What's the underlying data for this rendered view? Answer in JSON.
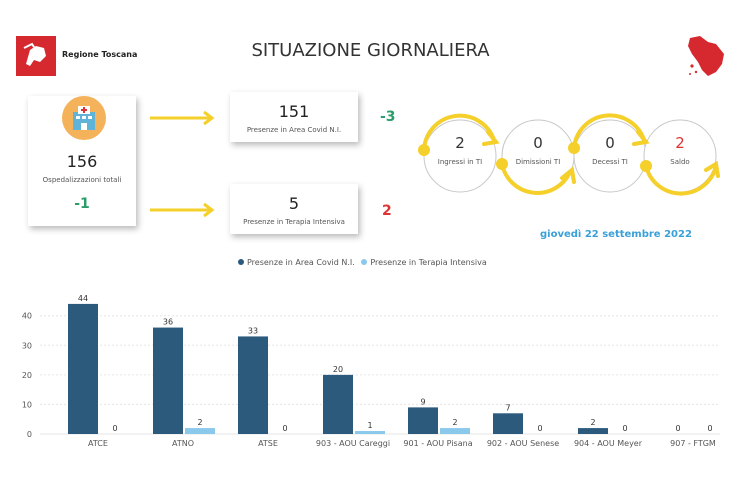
{
  "header": {
    "logo_text": "Regione Toscana",
    "title": "SITUAZIONE GIORNALIERA"
  },
  "hospital": {
    "total": "156",
    "total_label": "Ospedalizzazioni totali",
    "total_delta": "-1",
    "covid_area": "151",
    "covid_area_label": "Presenze in Area Covid N.I.",
    "covid_area_delta": "-3",
    "icu": "5",
    "icu_label": "Presenze in Terapia Intensiva",
    "icu_delta": "2"
  },
  "flow": {
    "items": [
      {
        "value": "2",
        "label": "Ingressi in TI"
      },
      {
        "value": "0",
        "label": "Dimissioni TI"
      },
      {
        "value": "0",
        "label": "Decessi TI"
      },
      {
        "value": "2",
        "label": "Saldo"
      }
    ]
  },
  "date": "giovedì 22 settembre 2022",
  "colors": {
    "series_dark": "#2b5a7d",
    "series_light": "#8ac8ec",
    "arrow": "#f5cf2a",
    "green": "#2a9d6a",
    "red": "#d33"
  },
  "chart_data": {
    "type": "bar",
    "categories": [
      "ATCE",
      "ATNO",
      "ATSE",
      "903 - AOU Careggi",
      "901 - AOU Pisana",
      "902 - AOU Senese",
      "904 - AOU Meyer",
      "907 - FTGM"
    ],
    "series": [
      {
        "name": "Presenze in Area Covid N.I.",
        "values": [
          44,
          36,
          33,
          20,
          9,
          7,
          2,
          0
        ]
      },
      {
        "name": "Presenze in Terapia Intensiva",
        "values": [
          0,
          2,
          0,
          1,
          2,
          0,
          0,
          0
        ]
      }
    ],
    "yticks": [
      0,
      10,
      20,
      30,
      40
    ],
    "ylim": [
      0,
      46
    ],
    "legend": "top-center",
    "grid": true
  }
}
